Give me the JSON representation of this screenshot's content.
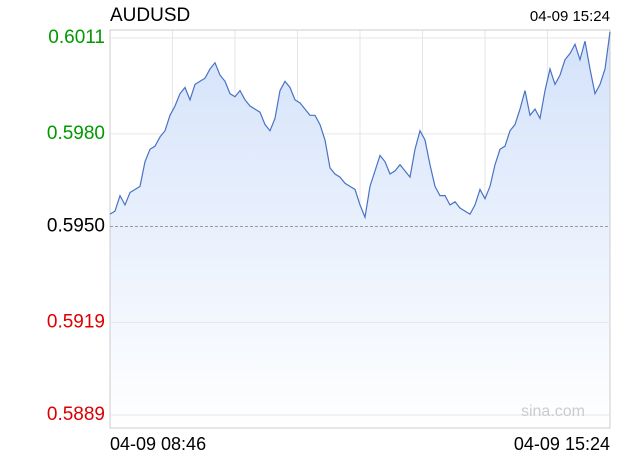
{
  "chart_data": {
    "type": "area",
    "title": "AUDUSD",
    "time": "04-09 15:24",
    "watermark": "sina.com",
    "color": "#4a72c4",
    "fill_color": "#d6e4fa",
    "ylim": [
      0.58848,
      0.60136
    ],
    "yticks": [
      0.6011,
      {
        "value": 0.598,
        "label": "0.5980"
      },
      {
        "value": 0.595,
        "label": "0.5950"
      },
      0.5919,
      0.5889
    ],
    "ytick_colors": [
      "#009900",
      "#009900",
      "#000000",
      "#dd0000",
      "#dd0000"
    ],
    "grid": true,
    "categories": [
      "04-09 08:46",
      null,
      null,
      null,
      null,
      null,
      null,
      null,
      null,
      null,
      null,
      null,
      null,
      null,
      null,
      null,
      null,
      null,
      null,
      null,
      null,
      null,
      null,
      null,
      null,
      null,
      null,
      null,
      null,
      null,
      null,
      null,
      null,
      null,
      null,
      null,
      null,
      null,
      null,
      null,
      null,
      null,
      null,
      null,
      null,
      null,
      null,
      null,
      null,
      null,
      null,
      null,
      null,
      null,
      null,
      null,
      null,
      null,
      null,
      null,
      null,
      null,
      null,
      null,
      null,
      null,
      null,
      null,
      null,
      null,
      null,
      null,
      null,
      null,
      null,
      null,
      null,
      null,
      null,
      null,
      null,
      null,
      null,
      null,
      null,
      null,
      null,
      null,
      null,
      null,
      null,
      null,
      null,
      null,
      null,
      null,
      null,
      null,
      null,
      null,
      "04-09 15:24"
    ],
    "values": [
      0.5954,
      0.5955,
      0.596,
      0.5957,
      0.5961,
      0.5962,
      0.5963,
      0.5971,
      0.5975,
      0.5976,
      0.5979,
      0.5981,
      0.5986,
      0.5989,
      0.5993,
      0.5995,
      0.5991,
      0.5996,
      0.5997,
      0.5998,
      0.6001,
      0.6003,
      0.5999,
      0.5997,
      0.5993,
      0.5992,
      0.5994,
      0.5991,
      0.5989,
      0.5988,
      0.5987,
      0.5983,
      0.5981,
      0.5985,
      0.5994,
      0.5997,
      0.5995,
      0.5991,
      0.599,
      0.5988,
      0.5986,
      0.5986,
      0.5983,
      0.5978,
      0.5969,
      0.5967,
      0.5966,
      0.5964,
      0.5963,
      0.5962,
      0.5957,
      0.5953,
      0.5963,
      0.5968,
      0.5973,
      0.5971,
      0.5967,
      0.5968,
      0.597,
      0.5968,
      0.5966,
      0.5975,
      0.5981,
      0.5978,
      0.597,
      0.5963,
      0.596,
      0.596,
      0.5957,
      0.5958,
      0.5956,
      0.5955,
      0.5954,
      0.5957,
      0.5962,
      0.5959,
      0.5963,
      0.597,
      0.5975,
      0.5976,
      0.5981,
      0.5983,
      0.5988,
      0.5994,
      0.5986,
      0.5988,
      0.5985,
      0.5994,
      0.6001,
      0.5996,
      0.5999,
      0.6004,
      0.6006,
      0.6009,
      0.6004,
      0.601,
      0.6001,
      0.5993,
      0.5996,
      0.6001,
      0.6013
    ]
  }
}
